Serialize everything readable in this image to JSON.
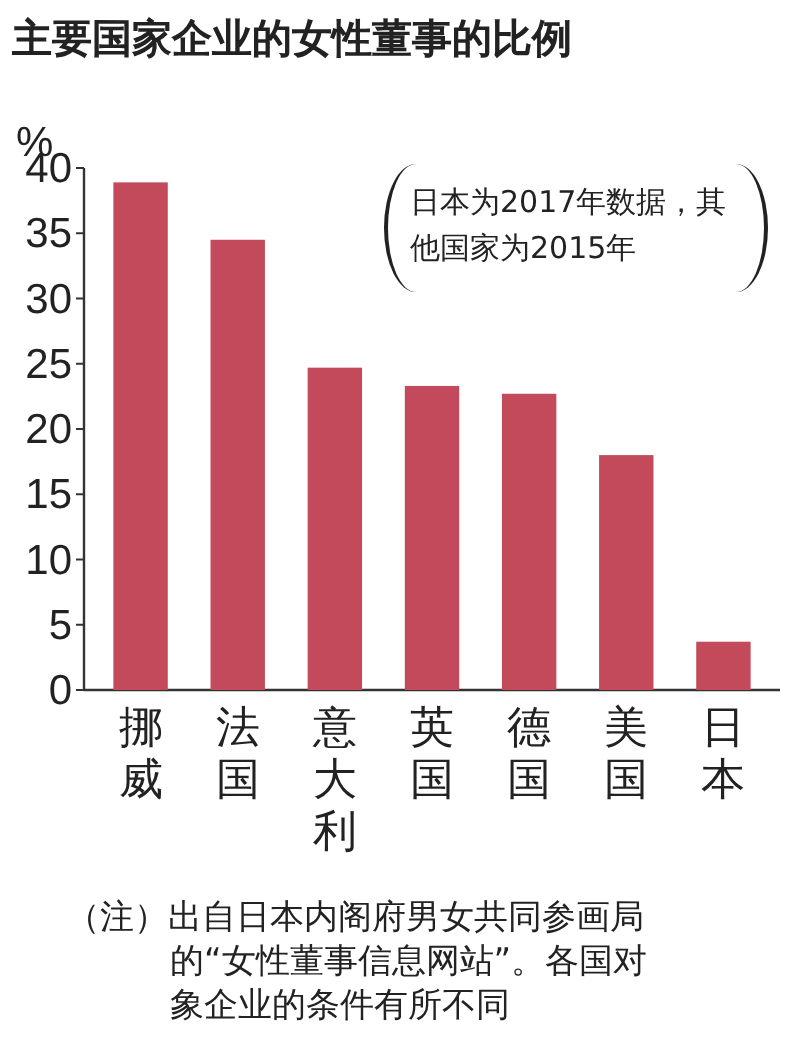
{
  "chart_data": {
    "type": "bar",
    "title": "主要国家企业的女性董事的比例",
    "ylabel": "%",
    "categories": [
      "挪威",
      "法国",
      "意大利",
      "英国",
      "德国",
      "美国",
      "日本"
    ],
    "values": [
      38.9,
      34.5,
      24.7,
      23.3,
      22.7,
      18.0,
      3.7
    ],
    "color": "#c24a5b",
    "ylim": [
      0,
      40
    ],
    "yticks": [
      0,
      5,
      10,
      15,
      20,
      25,
      30,
      35,
      40
    ],
    "annotations": [
      "日本为2017年数据，其他国家为2015年",
      "（注）出自日本内阁府男女共同参画局的“女性董事信息网站”。各国对象企业的条件有所不同"
    ]
  }
}
